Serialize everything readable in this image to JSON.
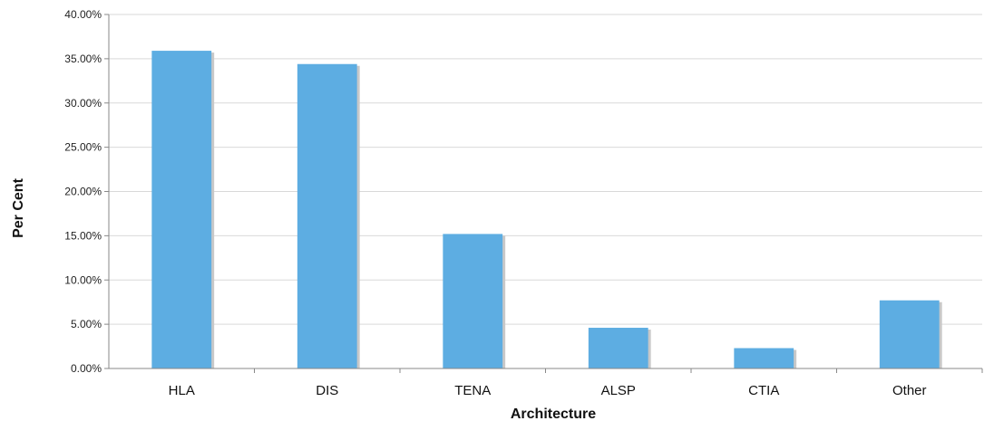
{
  "chart_data": {
    "type": "bar",
    "title": "",
    "xlabel": "Architecture",
    "ylabel": "Per Cent",
    "categories": [
      "HLA",
      "DIS",
      "TENA",
      "ALSP",
      "CTIA",
      "Other"
    ],
    "values": [
      35.9,
      34.4,
      15.2,
      4.6,
      2.3,
      7.7
    ],
    "ylim": [
      0,
      40
    ],
    "yticks": [
      "0.00%",
      "5.00%",
      "10.00%",
      "15.00%",
      "20.00%",
      "25.00%",
      "30.00%",
      "35.00%",
      "40.00%"
    ],
    "grid": true,
    "legend": "none",
    "bar_color": "#5dade2",
    "grid_color": "#d9d9d9"
  }
}
